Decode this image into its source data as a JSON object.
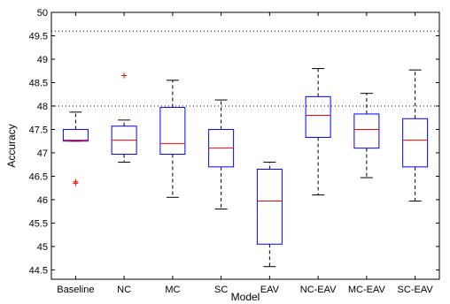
{
  "chart_data": {
    "type": "boxplot",
    "xlabel": "Model",
    "ylabel": "Accuracy",
    "ylim": [
      44.3,
      50
    ],
    "yticks": [
      44.5,
      45,
      45.5,
      46,
      46.5,
      47,
      47.5,
      48,
      48.5,
      49,
      49.5,
      50
    ],
    "ytick_labels": [
      "44.5",
      "45",
      "45.5",
      "46",
      "46.5",
      "47",
      "47.5",
      "48",
      "48.5",
      "49",
      "49.5",
      "50"
    ],
    "categories": [
      "Baseline",
      "NC",
      "MC",
      "SC",
      "EAV",
      "NC-EAV",
      "MC-EAV",
      "SC-EAV"
    ],
    "boxes": [
      {
        "whisker_low": 47.25,
        "q1": 47.25,
        "median": 47.27,
        "q3": 47.5,
        "whisker_high": 47.87,
        "outliers": [
          46.35,
          46.38
        ]
      },
      {
        "whisker_low": 46.8,
        "q1": 46.97,
        "median": 47.27,
        "q3": 47.57,
        "whisker_high": 47.7,
        "outliers": [
          48.65
        ]
      },
      {
        "whisker_low": 46.05,
        "q1": 46.97,
        "median": 47.2,
        "q3": 47.97,
        "whisker_high": 48.55,
        "outliers": []
      },
      {
        "whisker_low": 45.8,
        "q1": 46.7,
        "median": 47.1,
        "q3": 47.5,
        "whisker_high": 48.13,
        "outliers": []
      },
      {
        "whisker_low": 44.57,
        "q1": 45.05,
        "median": 45.97,
        "q3": 46.65,
        "whisker_high": 46.8,
        "outliers": []
      },
      {
        "whisker_low": 46.1,
        "q1": 47.33,
        "median": 47.8,
        "q3": 48.2,
        "whisker_high": 48.8,
        "outliers": []
      },
      {
        "whisker_low": 46.47,
        "q1": 47.1,
        "median": 47.5,
        "q3": 47.83,
        "whisker_high": 48.27,
        "outliers": []
      },
      {
        "whisker_low": 45.97,
        "q1": 46.7,
        "median": 47.27,
        "q3": 47.73,
        "whisker_high": 48.77,
        "outliers": []
      }
    ],
    "reference_lines": [
      49.6,
      48.0
    ],
    "colors": {
      "box": "#0000ff",
      "median": "#ff0000",
      "whisker": "#000000",
      "outlier": "#ff0000",
      "reference": "#000000"
    },
    "grid": false
  }
}
